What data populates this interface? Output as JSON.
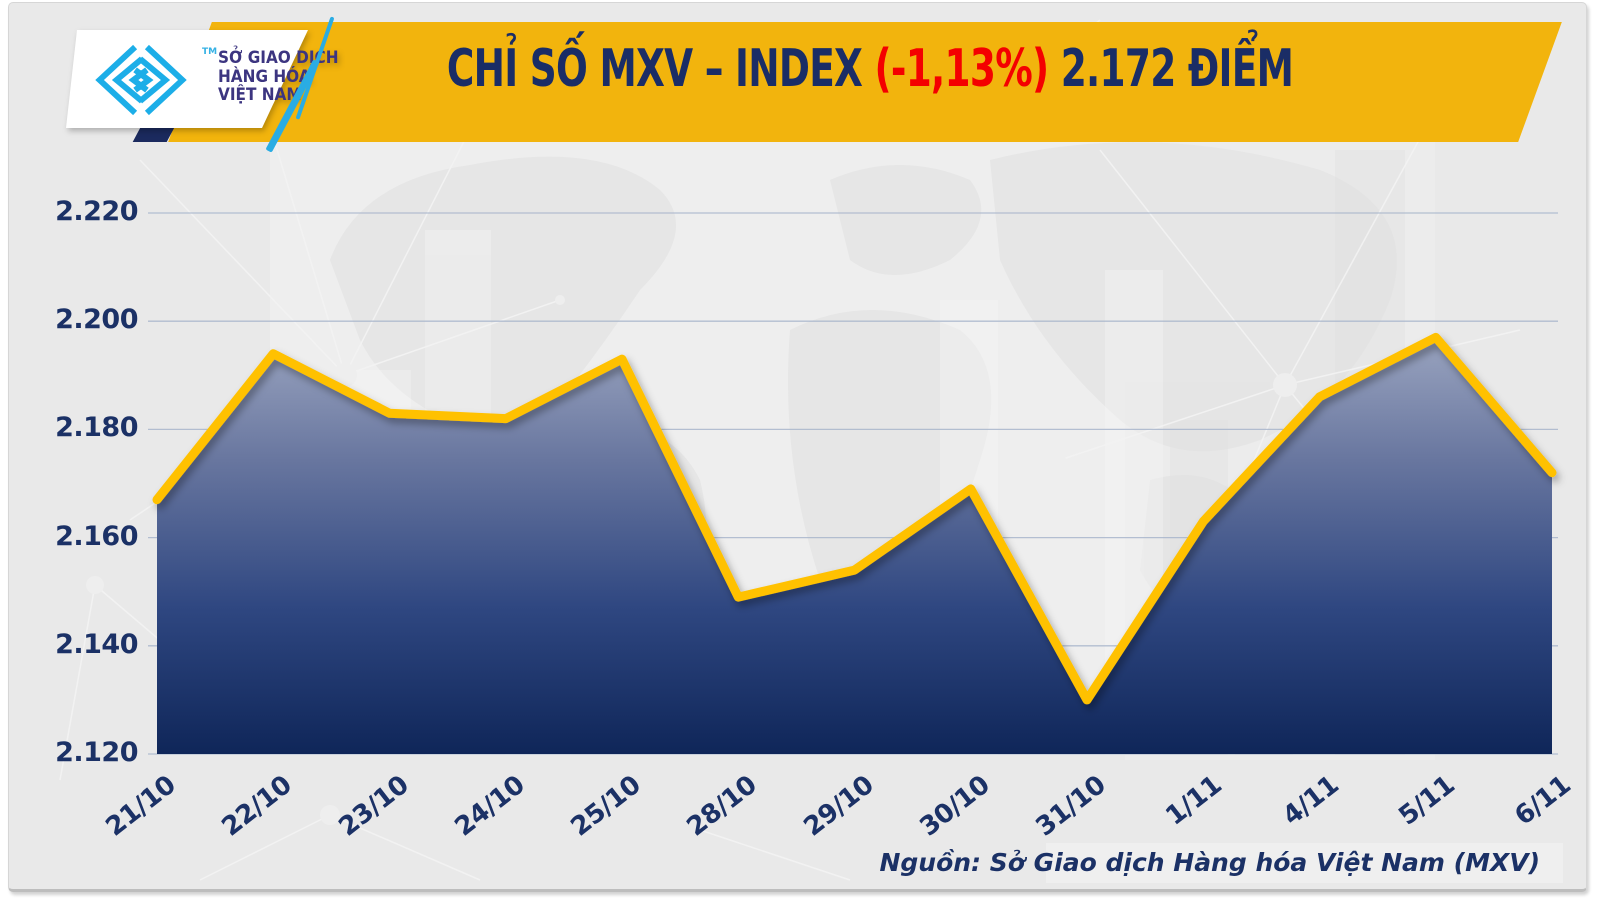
{
  "header": {
    "title_prefix": "CHỈ SỐ MXV – INDEX ",
    "change": "(-1,13%)",
    "title_suffix": " 2.172 ĐIỂM",
    "banner_color": "#f2b40d",
    "title_color": "#1a2d66",
    "change_color": "#f40000"
  },
  "logo": {
    "line1": "SỞ GIAO DỊCH",
    "line2": "HÀNG HÓA",
    "line3": "VIỆT NAM",
    "tm": "TM",
    "mark_color": "#1caee8",
    "text_color": "#3c3580"
  },
  "footer": {
    "source": "Nguồn: Sở Giao dịch Hàng hóa Việt Nam (MXV)"
  },
  "chart_data": {
    "type": "area",
    "title": "CHỈ SỐ MXV – INDEX (-1,13%) 2.172 ĐIỂM",
    "categories": [
      "21/10",
      "22/10",
      "23/10",
      "24/10",
      "25/10",
      "28/10",
      "29/10",
      "30/10",
      "31/10",
      "1/11",
      "4/11",
      "5/11",
      "6/11"
    ],
    "values": [
      2167,
      2194,
      2183,
      2182,
      2193,
      2149,
      2154,
      2169,
      2130,
      2163,
      2186,
      2197,
      2172
    ],
    "current_value_label": "2.172",
    "change_pct_label": "-1,13%",
    "y_ticks": [
      {
        "label": "2.220",
        "value": 2220
      },
      {
        "label": "2.200",
        "value": 2200
      },
      {
        "label": "2.180",
        "value": 2180
      },
      {
        "label": "2.160",
        "value": 2160
      },
      {
        "label": "2.140",
        "value": 2140
      },
      {
        "label": "2.120",
        "value": 2120
      }
    ],
    "ylim": [
      2120,
      2220
    ],
    "xlabel": "",
    "ylabel": "",
    "grid": "on",
    "legend": "none",
    "line_color": "#ffc103",
    "grid_color": "#a9b6cc",
    "area_gradient": [
      "#9ba5c0",
      "#68769f",
      "#2f4781",
      "#0f2659"
    ]
  }
}
